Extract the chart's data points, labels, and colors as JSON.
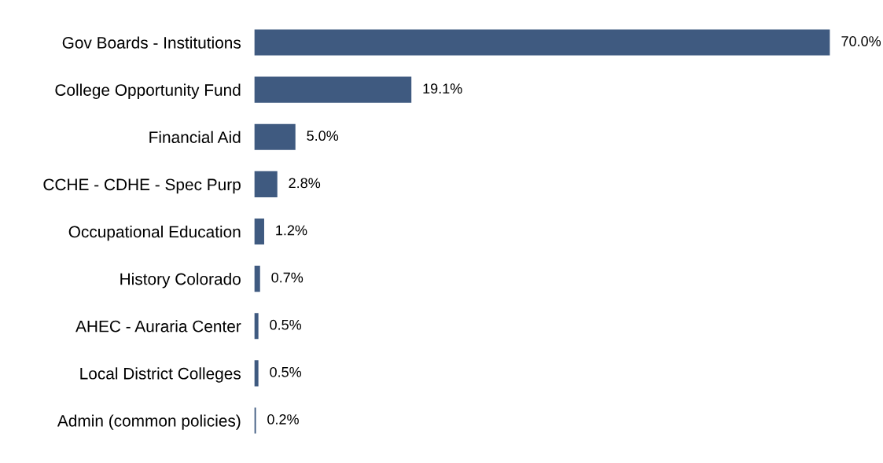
{
  "chart_data": {
    "type": "bar",
    "orientation": "horizontal",
    "categories": [
      "Gov Boards - Institutions",
      "College Opportunity Fund",
      "Financial Aid",
      "CCHE - CDHE - Spec Purp",
      "Occupational Education",
      "History Colorado",
      "AHEC - Auraria Center",
      "Local District Colleges",
      "Admin (common policies)"
    ],
    "values": [
      70.0,
      19.1,
      5.0,
      2.8,
      1.2,
      0.7,
      0.5,
      0.5,
      0.2
    ],
    "value_labels": [
      "70.0%",
      "19.1%",
      "5.0%",
      "2.8%",
      "1.2%",
      "0.7%",
      "0.5%",
      "0.5%",
      "0.2%"
    ],
    "color": "#3f5a80",
    "grid": false,
    "legend": false
  }
}
